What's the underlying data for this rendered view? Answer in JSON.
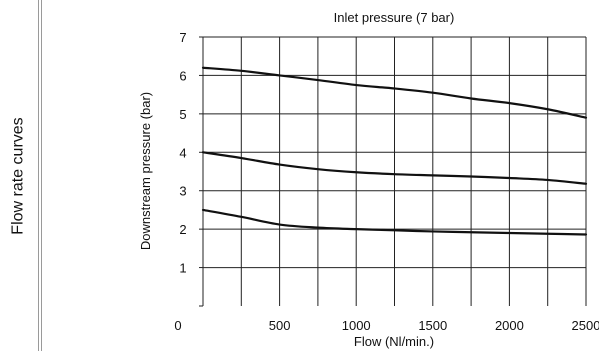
{
  "side_label": "Flow rate curves",
  "chart_data": {
    "type": "line",
    "title": "Inlet pressure (7 bar)",
    "xlabel": "Flow  (Nl/min.)",
    "ylabel": "Downstream pressure  (bar)",
    "xlim": [
      0,
      2500
    ],
    "ylim": [
      0,
      7
    ],
    "x_ticks": [
      0,
      500,
      1000,
      1500,
      2000,
      2500
    ],
    "y_ticks": [
      1,
      2,
      3,
      4,
      5,
      6,
      7
    ],
    "x_minor_step": 250,
    "grid": true,
    "line_color": "#111111",
    "series": [
      {
        "x": [
          0,
          250,
          500,
          750,
          1000,
          1250,
          1500,
          1750,
          2000,
          2250,
          2500
        ],
        "values": [
          6.2,
          6.12,
          6.0,
          5.88,
          5.75,
          5.66,
          5.55,
          5.4,
          5.28,
          5.12,
          4.9
        ]
      },
      {
        "x": [
          0,
          250,
          500,
          750,
          1000,
          1250,
          1500,
          1750,
          2000,
          2250,
          2500
        ],
        "values": [
          4.0,
          3.85,
          3.68,
          3.56,
          3.48,
          3.43,
          3.4,
          3.37,
          3.33,
          3.28,
          3.18
        ]
      },
      {
        "x": [
          0,
          250,
          500,
          750,
          1000,
          1250,
          1500,
          1750,
          2000,
          2250,
          2500
        ],
        "values": [
          2.5,
          2.32,
          2.12,
          2.04,
          2.0,
          1.97,
          1.94,
          1.92,
          1.9,
          1.88,
          1.86
        ]
      }
    ]
  }
}
